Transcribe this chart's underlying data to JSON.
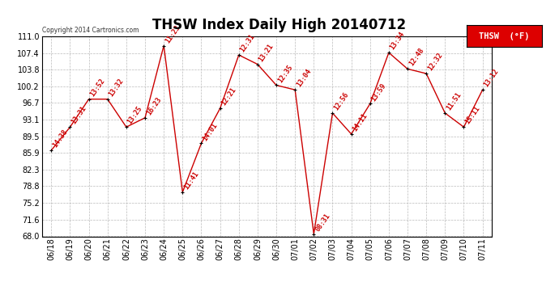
{
  "title": "THSW Index Daily High 20140712",
  "copyright": "Copyright 2014 Cartronics.com",
  "legend_label": "THSW  (°F)",
  "x_labels": [
    "06/18",
    "06/19",
    "06/20",
    "06/21",
    "06/22",
    "06/23",
    "06/24",
    "06/25",
    "06/26",
    "06/27",
    "06/28",
    "06/29",
    "06/30",
    "07/01",
    "07/02",
    "07/03",
    "07/04",
    "07/05",
    "07/06",
    "07/07",
    "07/08",
    "07/09",
    "07/10",
    "07/11"
  ],
  "y_values": [
    86.5,
    91.5,
    97.5,
    97.5,
    91.5,
    93.5,
    109.0,
    77.5,
    88.0,
    95.5,
    107.0,
    105.0,
    100.5,
    99.5,
    68.5,
    94.5,
    90.0,
    96.5,
    107.5,
    104.0,
    103.0,
    94.5,
    91.5,
    99.5
  ],
  "time_labels": [
    "14:38",
    "13:31",
    "13:52",
    "13:32",
    "13:25",
    "16:23",
    "11:23",
    "11:41",
    "14:01",
    "12:21",
    "12:31",
    "13:21",
    "12:35",
    "13:04",
    "08:31",
    "12:56",
    "14:11",
    "13:59",
    "13:34",
    "12:48",
    "12:32",
    "11:51",
    "15:11",
    "13:12"
  ],
  "y_ticks": [
    68.0,
    71.6,
    75.2,
    78.8,
    82.3,
    85.9,
    89.5,
    93.1,
    96.7,
    100.2,
    103.8,
    107.4,
    111.0
  ],
  "y_min": 68.0,
  "y_max": 111.0,
  "line_color": "#cc0000",
  "marker_color": "#000000",
  "bg_color": "#ffffff",
  "grid_color": "#bbbbbb",
  "title_fontsize": 12,
  "tick_fontsize": 7,
  "time_label_fontsize": 6.0,
  "legend_bg": "#dd0000",
  "legend_text_color": "#ffffff"
}
